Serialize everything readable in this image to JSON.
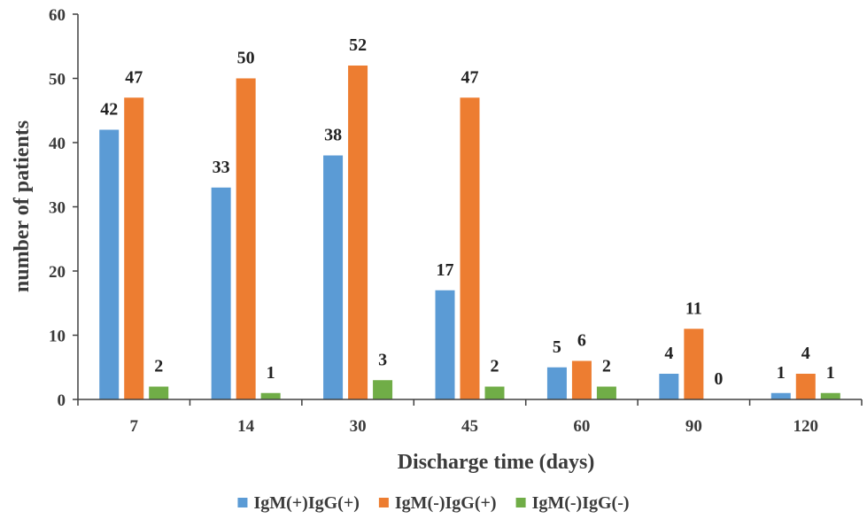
{
  "chart_data": {
    "type": "bar",
    "title": "",
    "xlabel": "Discharge time (days)",
    "ylabel": "number of patients",
    "categories": [
      "7",
      "14",
      "30",
      "45",
      "60",
      "90",
      "120"
    ],
    "series": [
      {
        "name": "IgM(+)IgG(+)",
        "color": "#5b9bd5",
        "values": [
          42,
          33,
          38,
          17,
          5,
          4,
          1
        ]
      },
      {
        "name": "IgM(-)IgG(+)",
        "color": "#ed7d31",
        "values": [
          47,
          50,
          52,
          47,
          6,
          11,
          4
        ]
      },
      {
        "name": "IgM(-)IgG(-)",
        "color": "#70ad47",
        "values": [
          2,
          1,
          3,
          2,
          2,
          0,
          1
        ]
      }
    ],
    "ylim": [
      0,
      60
    ],
    "yticks": [
      0,
      10,
      20,
      30,
      40,
      50,
      60
    ],
    "grid": false,
    "legend_position": "bottom"
  }
}
